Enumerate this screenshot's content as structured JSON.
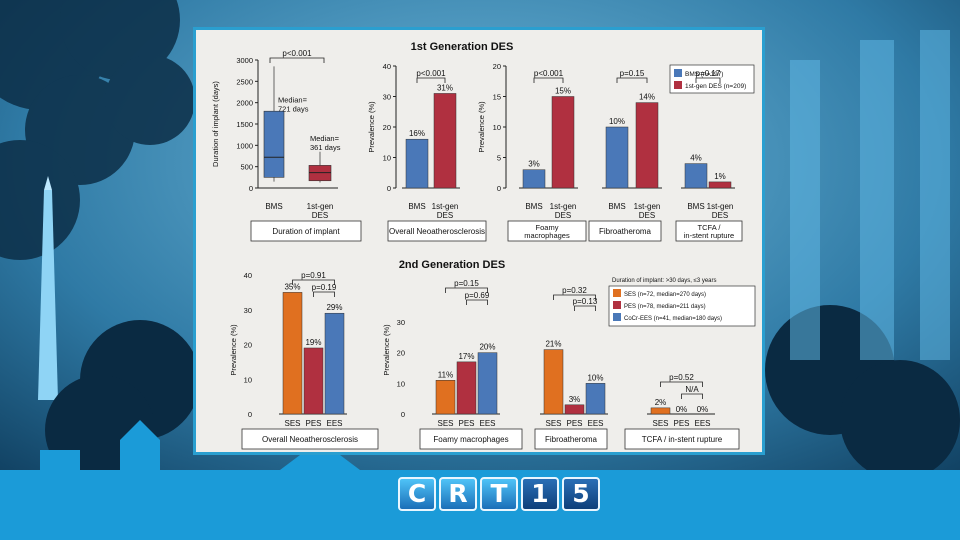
{
  "logo": {
    "letters": [
      "C",
      "R",
      "T",
      "1",
      "5"
    ]
  },
  "colors": {
    "bms": "#4a78b8",
    "des1": "#b03040",
    "ses": "#e07020",
    "pes": "#b03040",
    "ees": "#4a78b8",
    "slide_border": "#2a9fd0"
  },
  "chart_data": [
    {
      "id": "gen1",
      "type": "bar",
      "title": "1st Generation DES",
      "legend": {
        "placement": "top-right",
        "entries": [
          {
            "name": "BMS (n=197)",
            "color": "#4a78b8"
          },
          {
            "name": "1st-gen DES (n=209)",
            "color": "#b03040"
          }
        ]
      },
      "boxplot": {
        "type": "box",
        "ylabel": "Duration of implant (days)",
        "ylim": [
          0,
          3000
        ],
        "yticks": [
          0,
          500,
          1000,
          1500,
          2000,
          2500,
          3000
        ],
        "categories": [
          "BMS",
          "1st-gen DES"
        ],
        "boxes": [
          {
            "name": "BMS",
            "min": 150,
            "q1": 250,
            "median": 721,
            "q3": 1800,
            "max": 2850,
            "label": "Median= 721 days"
          },
          {
            "name": "1st-gen DES",
            "min": 130,
            "q1": 170,
            "median": 361,
            "q3": 530,
            "max": 850,
            "label": "Median= 361 days"
          }
        ],
        "pvalue": "p<0.001",
        "panel_label": "Duration of implant"
      },
      "bar_ylabel": "Prevalence (%)",
      "bar_ylim": [
        0,
        40
      ],
      "bar_yticks_a": [
        0,
        10,
        20,
        30,
        40
      ],
      "bar_yticks_b": [
        0,
        5,
        10,
        15,
        20
      ],
      "panels": [
        {
          "label": "Overall Neoatherosclerosis",
          "categories": [
            "BMS",
            "1st-gen DES"
          ],
          "values": [
            16,
            31
          ],
          "data_labels": [
            "16%",
            "31%"
          ],
          "pvalue": "p<0.001"
        },
        {
          "label": "Foamy macrophages",
          "categories": [
            "BMS",
            "1st-gen DES"
          ],
          "values": [
            3,
            15
          ],
          "data_labels": [
            "3%",
            "15%"
          ],
          "pvalue": "p<0.001"
        },
        {
          "label": "Fibroatheroma",
          "categories": [
            "BMS",
            "1st-gen DES"
          ],
          "values": [
            10,
            14
          ],
          "data_labels": [
            "10%",
            "14%"
          ],
          "pvalue": "p=0.15"
        },
        {
          "label": "TCFA / in-stent rupture",
          "categories": [
            "BMS",
            "1st-gen DES"
          ],
          "values": [
            4,
            1
          ],
          "data_labels": [
            "4%",
            "1%"
          ],
          "pvalue": "p=0.17"
        }
      ]
    },
    {
      "id": "gen2",
      "type": "bar",
      "title": "2nd Generation DES",
      "legend": {
        "placement": "top-right",
        "heading": "Duration of implant: >30 days, ≤3 years",
        "entries": [
          {
            "name": "SES (n=72, median=270 days)",
            "color": "#e07020"
          },
          {
            "name": "PES (n=78, median=211 days)",
            "color": "#b03040"
          },
          {
            "name": "CoCr-EES (n=41, median=180 days)",
            "color": "#4a78b8"
          }
        ]
      },
      "ylabel": "Prevalence (%)",
      "categories": [
        "SES",
        "PES",
        "EES"
      ],
      "panels": [
        {
          "label": "Overall Neoatherosclerosis",
          "ylim": [
            0,
            40
          ],
          "yticks": [
            0,
            10,
            20,
            30,
            40
          ],
          "values": [
            35,
            19,
            29
          ],
          "data_labels": [
            "35%",
            "19%",
            "29%"
          ],
          "pvalues": [
            "p=0.91",
            "p=0.19"
          ]
        },
        {
          "label": "Foamy macrophages",
          "ylim": [
            0,
            30
          ],
          "yticks": [
            0,
            10,
            20,
            30
          ],
          "values": [
            11,
            17,
            20
          ],
          "data_labels": [
            "11%",
            "17%",
            "20%"
          ],
          "pvalues": [
            "p=0.15",
            "p=0.69"
          ]
        },
        {
          "label": "Fibroatheroma",
          "ylim": [
            0,
            30
          ],
          "yticks": [],
          "values": [
            21,
            3,
            10
          ],
          "data_labels": [
            "21%",
            "3%",
            "10%"
          ],
          "pvalues": [
            "p=0.32",
            "p=0.13"
          ]
        },
        {
          "label": "TCFA / in-stent rupture",
          "ylim": [
            0,
            30
          ],
          "yticks": [],
          "values": [
            2,
            0,
            0
          ],
          "data_labels": [
            "2%",
            "0%",
            "0%"
          ],
          "pvalues": [
            "p=0.52",
            "N/A"
          ]
        }
      ]
    }
  ]
}
